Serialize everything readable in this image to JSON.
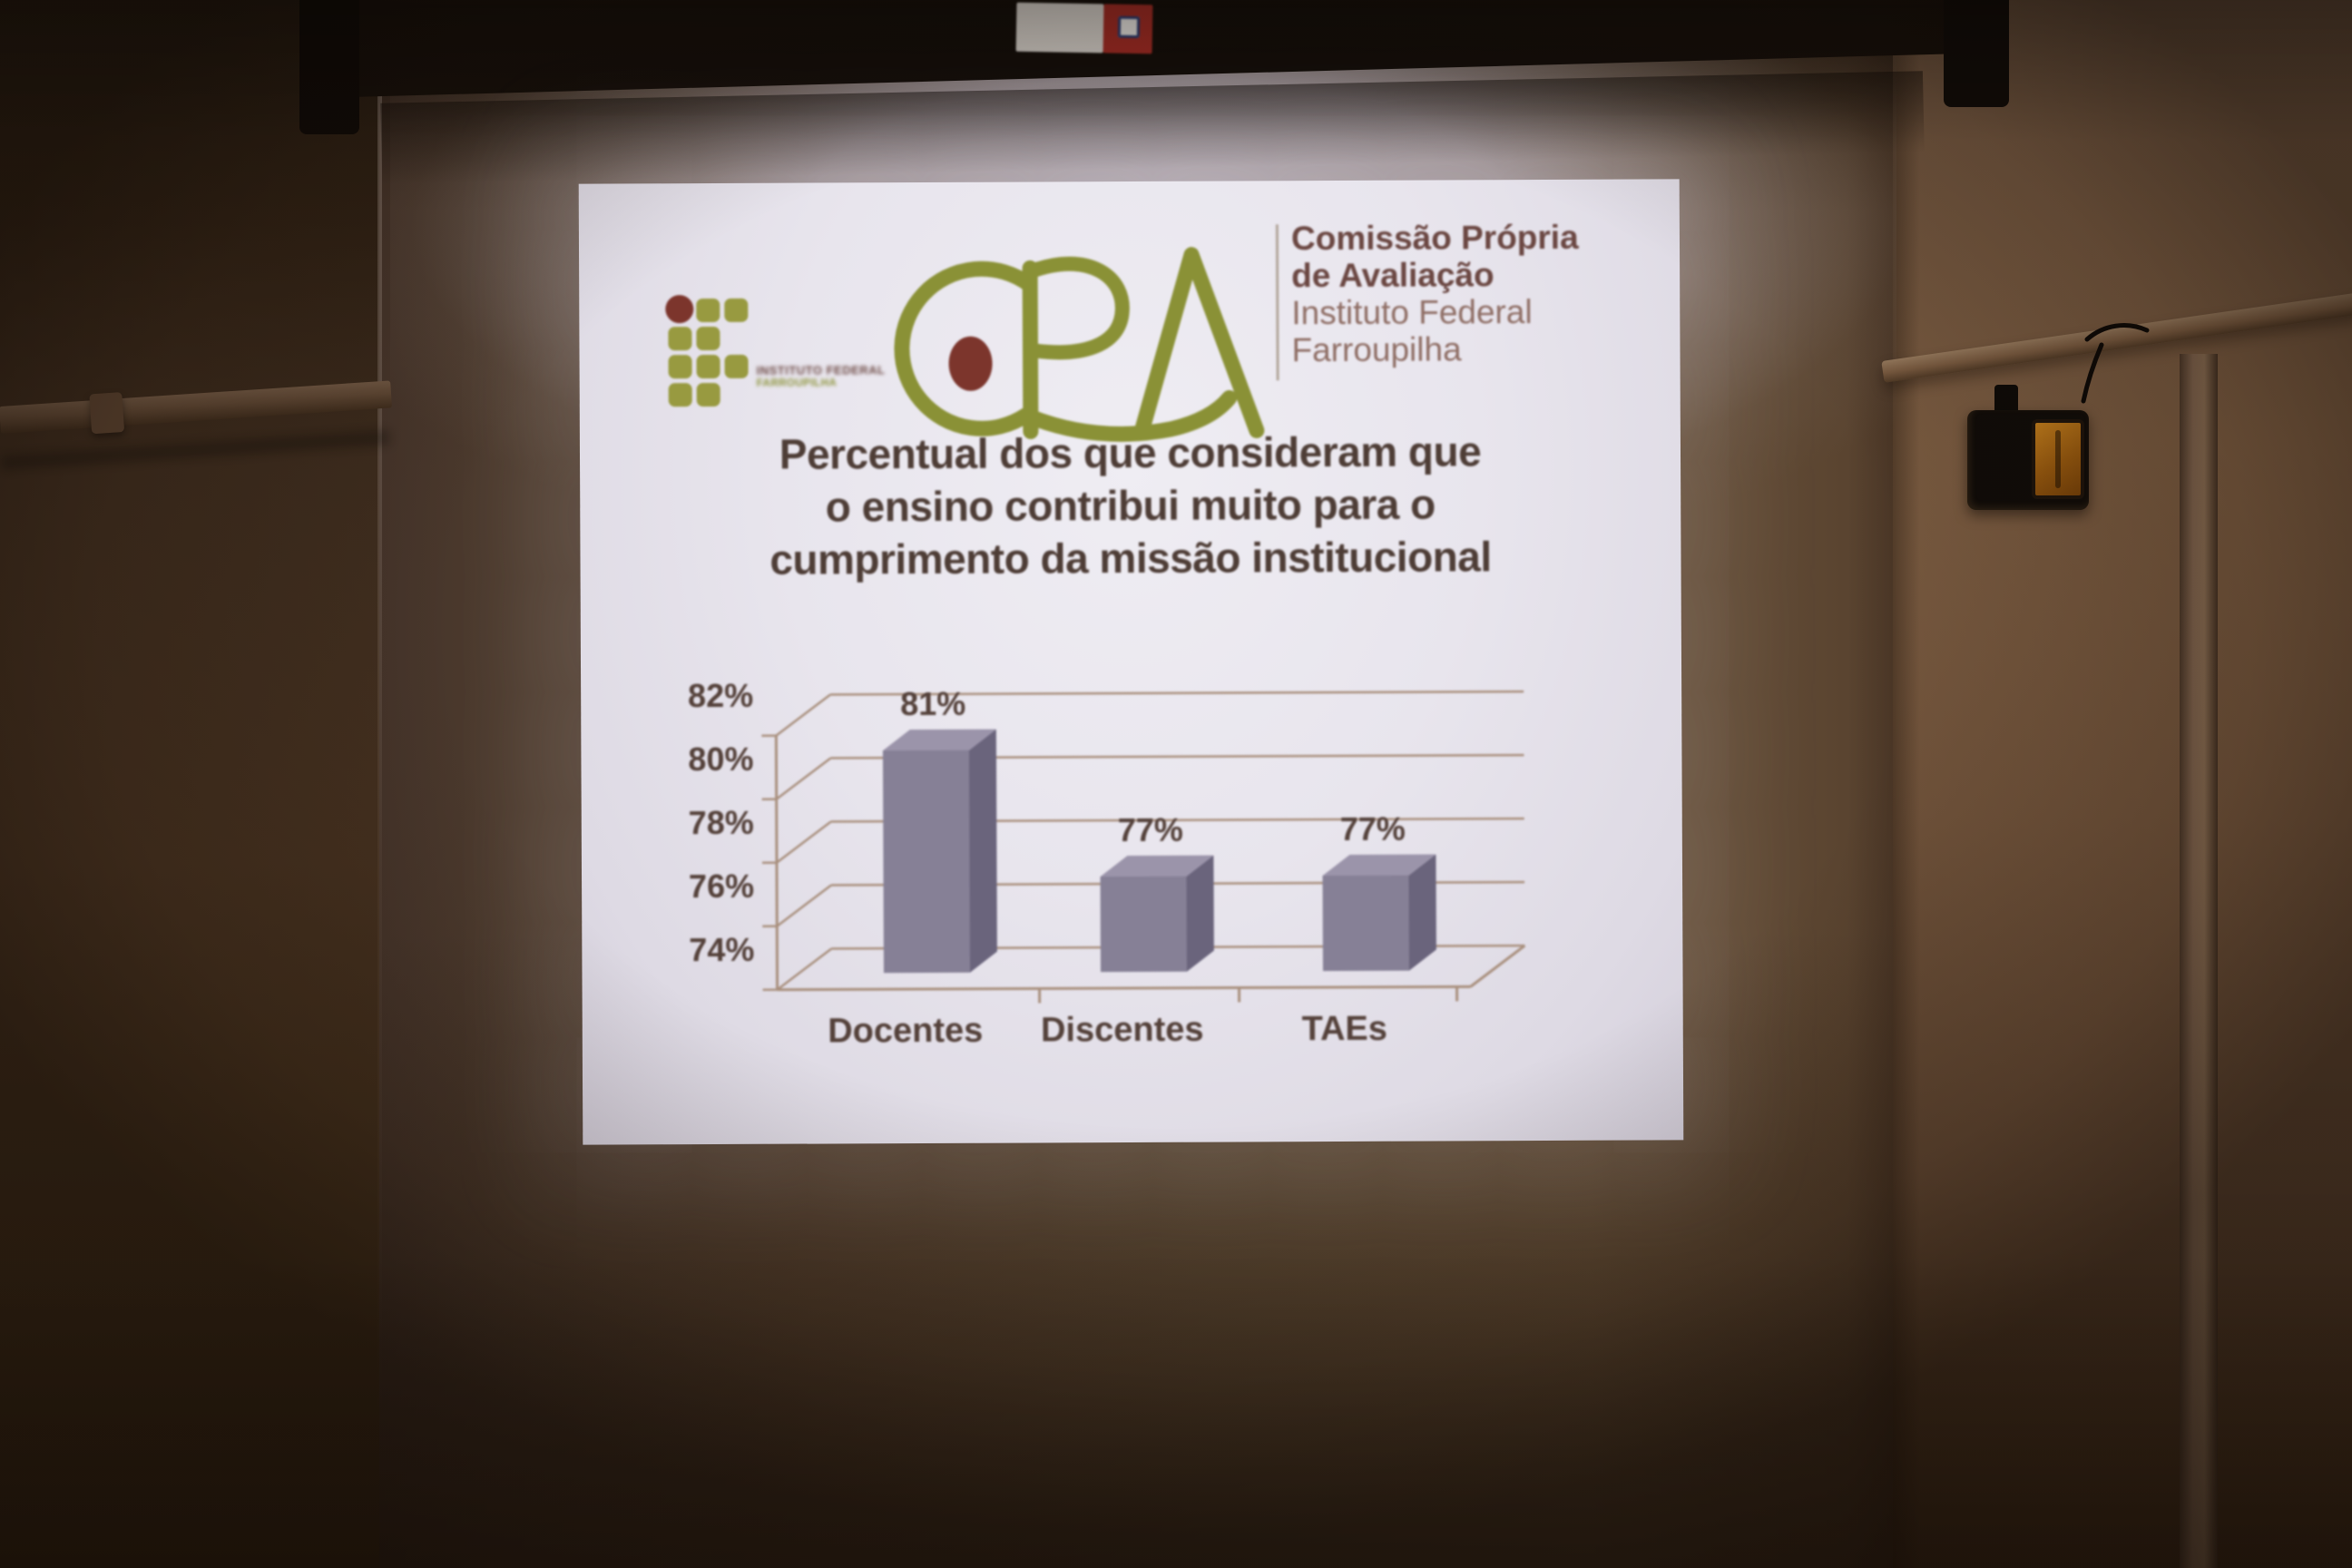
{
  "slide": {
    "if_logo": {
      "name": "instituto-federal-logo",
      "caption": {
        "line1": "INSTITUTO FEDERAL",
        "line2": "FARROUPILHA"
      }
    },
    "cpa_logo_letters": "CPA",
    "cpa_caption": {
      "line1": "Comissão Própria",
      "line2": "de Avaliação",
      "line3": "Instituto Federal",
      "line4": "Farroupilha"
    },
    "title": {
      "line1": "Percentual dos que consideram que",
      "line2": "o ensino contribui muito para o",
      "line3": "cumprimento da missão institucional"
    }
  },
  "chart_data": {
    "type": "bar",
    "style": "3d-column",
    "title": "Percentual dos que consideram que o ensino contribui muito para o cumprimento da missão institucional",
    "categories": [
      "Docentes",
      "Discentes",
      "TAEs"
    ],
    "values": [
      81,
      77,
      77
    ],
    "data_labels": [
      "81%",
      "77%",
      "77%"
    ],
    "unit": "%",
    "ylim": [
      74,
      82
    ],
    "ytick_step": 2,
    "ytick_labels": [
      "74%",
      "76%",
      "78%",
      "80%",
      "82%"
    ],
    "gridlines": true,
    "legend": "none",
    "xlabel": "",
    "ylabel": ""
  },
  "colors": {
    "olive": "#8a9136",
    "if_square": "#989a40",
    "maroon_dot": "#7c352c",
    "divider": "#b3a79c",
    "cpa_text_bold": "#6b4742",
    "cpa_text_light": "#8f6e65",
    "title_text": "#4e3d36",
    "chart_text": "#54413a",
    "gridline": "#a9907e",
    "bar_front": "#868096",
    "bar_side": "#6a647c",
    "bar_top": "#9b94aa",
    "sticker_red": "#a32c24"
  }
}
